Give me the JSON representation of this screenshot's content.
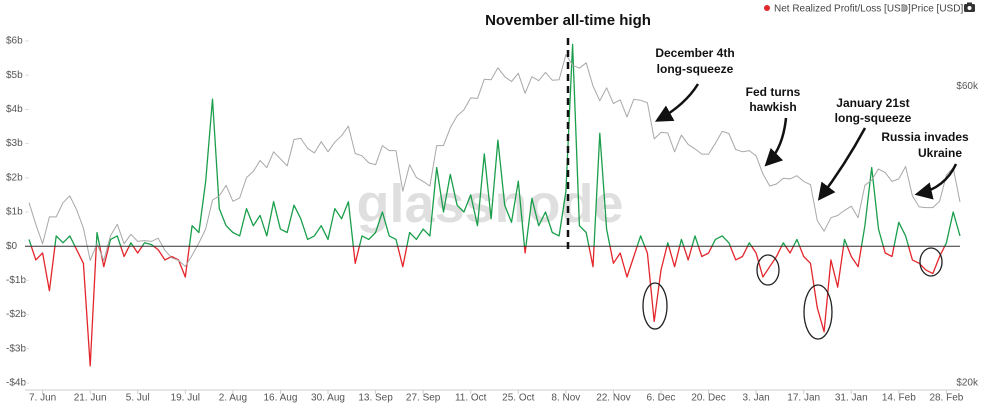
{
  "chart_data": {
    "type": "line",
    "watermark": "glassnode",
    "legend": "top-right",
    "annotations": [
      [
        "November all-time high"
      ],
      [
        "December 4th",
        "long-squeeze"
      ],
      [
        "Fed turns",
        "hawkish"
      ],
      [
        "January 21st",
        "long-squeeze"
      ],
      [
        "Russia invades",
        "Ukraine"
      ]
    ],
    "categories": [
      null,
      null,
      "7. Jun",
      null,
      null,
      null,
      null,
      null,
      null,
      "21. Jun",
      null,
      null,
      null,
      null,
      null,
      null,
      "5. Jul",
      null,
      null,
      null,
      null,
      null,
      null,
      "19. Jul",
      null,
      null,
      null,
      null,
      null,
      null,
      "2. Aug",
      null,
      null,
      null,
      null,
      null,
      null,
      "16. Aug",
      null,
      null,
      null,
      null,
      null,
      null,
      "30. Aug",
      null,
      null,
      null,
      null,
      null,
      null,
      "13. Sep",
      null,
      null,
      null,
      null,
      null,
      null,
      "27. Sep",
      null,
      null,
      null,
      null,
      null,
      null,
      "11. Oct",
      null,
      null,
      null,
      null,
      null,
      null,
      "25. Oct",
      null,
      null,
      null,
      null,
      null,
      null,
      "8. Nov",
      null,
      null,
      null,
      null,
      null,
      null,
      "22. Nov",
      null,
      null,
      null,
      null,
      null,
      null,
      "6. Dec",
      null,
      null,
      null,
      null,
      null,
      null,
      "20. Dec",
      null,
      null,
      null,
      null,
      null,
      null,
      "3. Jan",
      null,
      null,
      null,
      null,
      null,
      null,
      "17. Jan",
      null,
      null,
      null,
      null,
      null,
      null,
      "31. Jan",
      null,
      null,
      null,
      null,
      null,
      null,
      "14. Feb",
      null,
      null,
      null,
      null,
      null,
      null,
      "28. Feb",
      null,
      null
    ],
    "series": [
      {
        "name": "Net Realized Profit/Loss [USD]",
        "color": "#1a9e4b",
        "negative_color": "#e3262b",
        "values": [
          0.2,
          -0.4,
          -0.2,
          -1.3,
          0.3,
          0.1,
          0.3,
          -0.1,
          -0.5,
          -3.5,
          0.4,
          -0.6,
          0.2,
          0.3,
          -0.3,
          0.1,
          -0.2,
          0.1,
          0.05,
          -0.1,
          -0.4,
          -0.3,
          -0.4,
          -0.9,
          0.6,
          0.4,
          1.9,
          4.3,
          1.1,
          0.6,
          0.4,
          0.3,
          1.1,
          0.6,
          0.9,
          0.3,
          1.3,
          0.5,
          0.4,
          1.2,
          0.8,
          0.2,
          0.3,
          0.6,
          0.2,
          1.1,
          0.8,
          1.3,
          -0.5,
          0.3,
          0.2,
          0.4,
          1.0,
          0.3,
          0.2,
          -0.6,
          0.4,
          0.2,
          0.5,
          0.3,
          2.3,
          1.0,
          2.1,
          1.2,
          1.0,
          1.5,
          0.6,
          2.7,
          0.8,
          3.1,
          1.2,
          0.7,
          1.9,
          -0.2,
          1.4,
          0.6,
          1.0,
          0.4,
          0.3,
          1.6,
          5.9,
          0.6,
          0.4,
          -0.6,
          3.3,
          0.5,
          -0.5,
          -0.2,
          -0.9,
          -0.3,
          0.3,
          -0.2,
          -2.2,
          -0.7,
          0.1,
          -0.6,
          0.2,
          -0.4,
          0.3,
          -0.3,
          -0.2,
          0.2,
          0.3,
          0.1,
          -0.4,
          -0.3,
          0.1,
          -0.2,
          -0.9,
          -0.6,
          -0.3,
          0.1,
          -0.2,
          0.2,
          -0.3,
          -0.5,
          -1.8,
          -2.5,
          -0.4,
          -1.2,
          0.2,
          -0.3,
          -0.6,
          0.6,
          2.3,
          0.5,
          -0.2,
          -0.3,
          0.7,
          0.3,
          -0.4,
          -0.5,
          -0.7,
          -0.8,
          -0.3,
          0.1,
          1.0,
          0.3
        ]
      },
      {
        "name": "Price [USD]",
        "color": "#a8a8a8",
        "axis": "y2",
        "values": [
          39000,
          36000,
          33500,
          37000,
          37000,
          39000,
          40000,
          38000,
          35500,
          31500,
          33500,
          31500,
          34500,
          36000,
          33500,
          34700,
          33800,
          33900,
          33800,
          34200,
          32700,
          31800,
          31500,
          30800,
          32100,
          33600,
          35400,
          39400,
          40000,
          41600,
          39200,
          39700,
          42800,
          43800,
          45600,
          44400,
          47100,
          45900,
          44700,
          49300,
          49500,
          47700,
          46900,
          48900,
          47100,
          48800,
          50000,
          51800,
          46800,
          46400,
          45200,
          44900,
          48200,
          47300,
          47300,
          40700,
          44900,
          42800,
          42200,
          41500,
          48200,
          48200,
          51500,
          53800,
          55000,
          57500,
          57400,
          61600,
          61500,
          64300,
          62200,
          61100,
          63000,
          58500,
          62200,
          61300,
          63200,
          61400,
          61500,
          67500,
          64900,
          64200,
          65500,
          60100,
          56900,
          59700,
          56300,
          57100,
          53600,
          57200,
          57000,
          56500,
          49400,
          50600,
          50500,
          47100,
          50100,
          48400,
          47600,
          46700,
          46700,
          48600,
          50800,
          50400,
          47500,
          47100,
          47300,
          46400,
          43400,
          41500,
          41800,
          42700,
          42600,
          43100,
          42200,
          41700,
          36500,
          35100,
          36900,
          37200,
          37900,
          38500,
          36900,
          41600,
          42400,
          44200,
          43600,
          42200,
          42600,
          44600,
          40000,
          38400,
          38300,
          38300,
          39200,
          43200,
          44400,
          39100
        ]
      }
    ],
    "ylim": [
      -4,
      6
    ],
    "yticks": [
      {
        "value": -4,
        "label": "-$4b"
      },
      {
        "value": -3,
        "label": "-$3b"
      },
      {
        "value": -2,
        "label": "-$2b"
      },
      {
        "value": -1,
        "label": "-$1b"
      },
      {
        "value": 0,
        "label": "$0"
      },
      {
        "value": 1,
        "label": "$1b"
      },
      {
        "value": 2,
        "label": "$2b"
      },
      {
        "value": 3,
        "label": "$3b"
      },
      {
        "value": 4,
        "label": "$4b"
      },
      {
        "value": 5,
        "label": "$5b"
      },
      {
        "value": 6,
        "label": "$6b"
      }
    ],
    "y2lim": [
      20000,
      71000
    ],
    "y2log": true,
    "y2ticks": [
      {
        "value": 20000,
        "label": "$20k"
      },
      {
        "value": 60000,
        "label": "$60k"
      }
    ]
  }
}
